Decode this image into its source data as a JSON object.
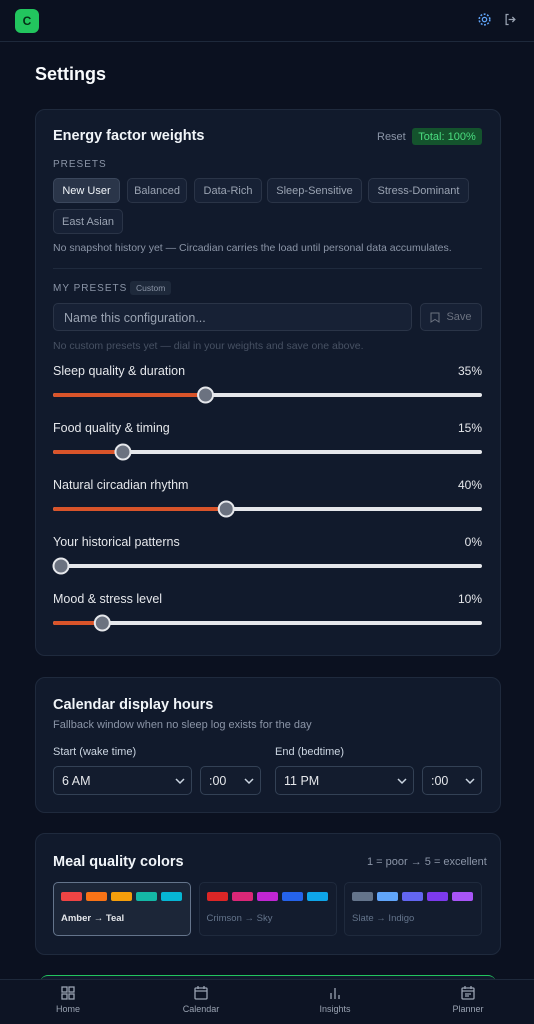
{
  "header": {
    "logo": "C"
  },
  "title": "Settings",
  "energy": {
    "title": "Energy factor weights",
    "reset": "Reset",
    "total": "Total: 100%",
    "presets_label": "PRESETS",
    "presets": [
      "New User",
      "Balanced",
      "Data-Rich",
      "Sleep-Sensitive",
      "Stress-Dominant",
      "East Asian"
    ],
    "note": "No snapshot history yet — Circadian carries the load until personal data accumulates.",
    "my_presets_label": "MY PRESETS",
    "custom_badge": "Custom",
    "input_placeholder": "Name this configuration...",
    "save": "Save",
    "empty_note": "No custom presets yet — dial in your weights and save one above.",
    "range": [
      0,
      100
    ],
    "sliders": [
      {
        "label": "Sleep quality & duration",
        "value": 35,
        "value_label": "35%"
      },
      {
        "label": "Food quality & timing",
        "value": 15,
        "value_label": "15%"
      },
      {
        "label": "Natural circadian rhythm",
        "value": 40,
        "value_label": "40%"
      },
      {
        "label": "Your historical patterns",
        "value": 0,
        "value_label": "0%"
      },
      {
        "label": "Mood & stress level",
        "value": 10,
        "value_label": "10%"
      }
    ]
  },
  "calendar": {
    "title": "Calendar display hours",
    "subtitle": "Fallback window when no sleep log exists for the day",
    "start_label": "Start (wake time)",
    "start_hour": "6 AM",
    "start_minute": ":00",
    "end_label": "End (bedtime)",
    "end_hour": "11 PM",
    "end_minute": ":00"
  },
  "meal": {
    "title": "Meal quality colors",
    "scale": "1 = poor → 5 = excellent",
    "palettes": [
      {
        "name": "Amber → Teal",
        "colors": [
          "#ef4444",
          "#f97316",
          "#f59e0b",
          "#14b8a6",
          "#06b6d4"
        ]
      },
      {
        "name": "Crimson → Sky",
        "colors": [
          "#dc2626",
          "#db2777",
          "#c026d3",
          "#2563eb",
          "#0ea5e9"
        ]
      },
      {
        "name": "Slate → Indigo",
        "colors": [
          "#64748b",
          "#60a5fa",
          "#6366f1",
          "#7c3aed",
          "#a855f7"
        ]
      }
    ]
  },
  "nav": [
    "Home",
    "Calendar",
    "Insights",
    "Planner"
  ]
}
